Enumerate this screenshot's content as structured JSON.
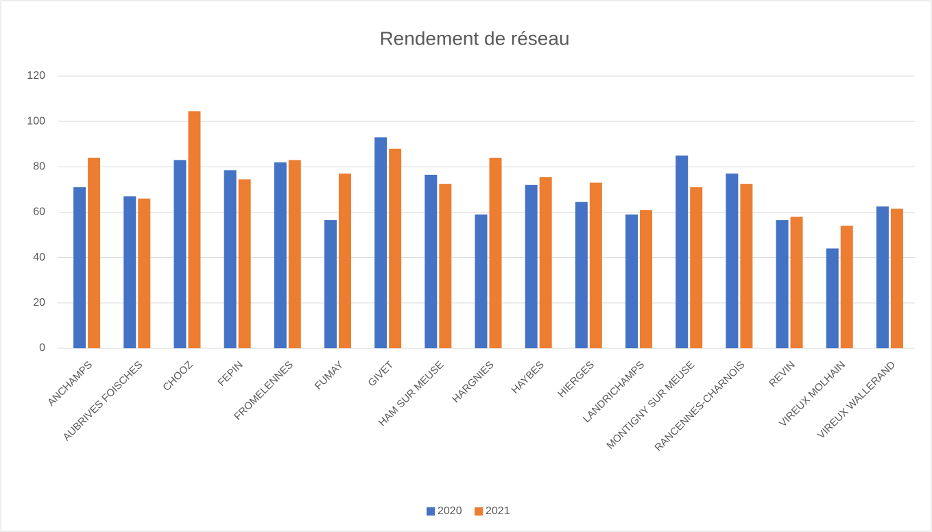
{
  "chart_data": {
    "type": "bar",
    "title": "Rendement de réseau",
    "categories": [
      "ANCHAMPS",
      "AUBRIVES FOISCHES",
      "CHOOZ",
      "FEPIN",
      "FROMELENNES",
      "FUMAY",
      "GIVET",
      "HAM SUR MEUSE",
      "HARGNIES",
      "HAYBES",
      "HIERGES",
      "LANDRICHAMPS",
      "MONTIGNY SUR MEUSE",
      "RANCENNES-CHARNOIS",
      "REVIN",
      "VIREUX MOLHAIN",
      "VIREUX WALLERAND"
    ],
    "series": [
      {
        "name": "2020",
        "color": "#4472c4",
        "values": [
          71,
          67,
          83,
          78.5,
          82,
          56.5,
          93,
          76.5,
          59,
          72,
          64.5,
          59,
          85,
          77,
          56.5,
          44,
          62.5
        ]
      },
      {
        "name": "2021",
        "color": "#ed7d31",
        "values": [
          84,
          66,
          104.5,
          74.5,
          83,
          77,
          88,
          72.5,
          84,
          75.5,
          73,
          61,
          71,
          72.5,
          58,
          54,
          61.5
        ]
      }
    ],
    "ylim": [
      0,
      120
    ],
    "yticks": [
      0,
      20,
      40,
      60,
      80,
      100,
      120
    ],
    "grid": true,
    "legend": "bottom"
  }
}
